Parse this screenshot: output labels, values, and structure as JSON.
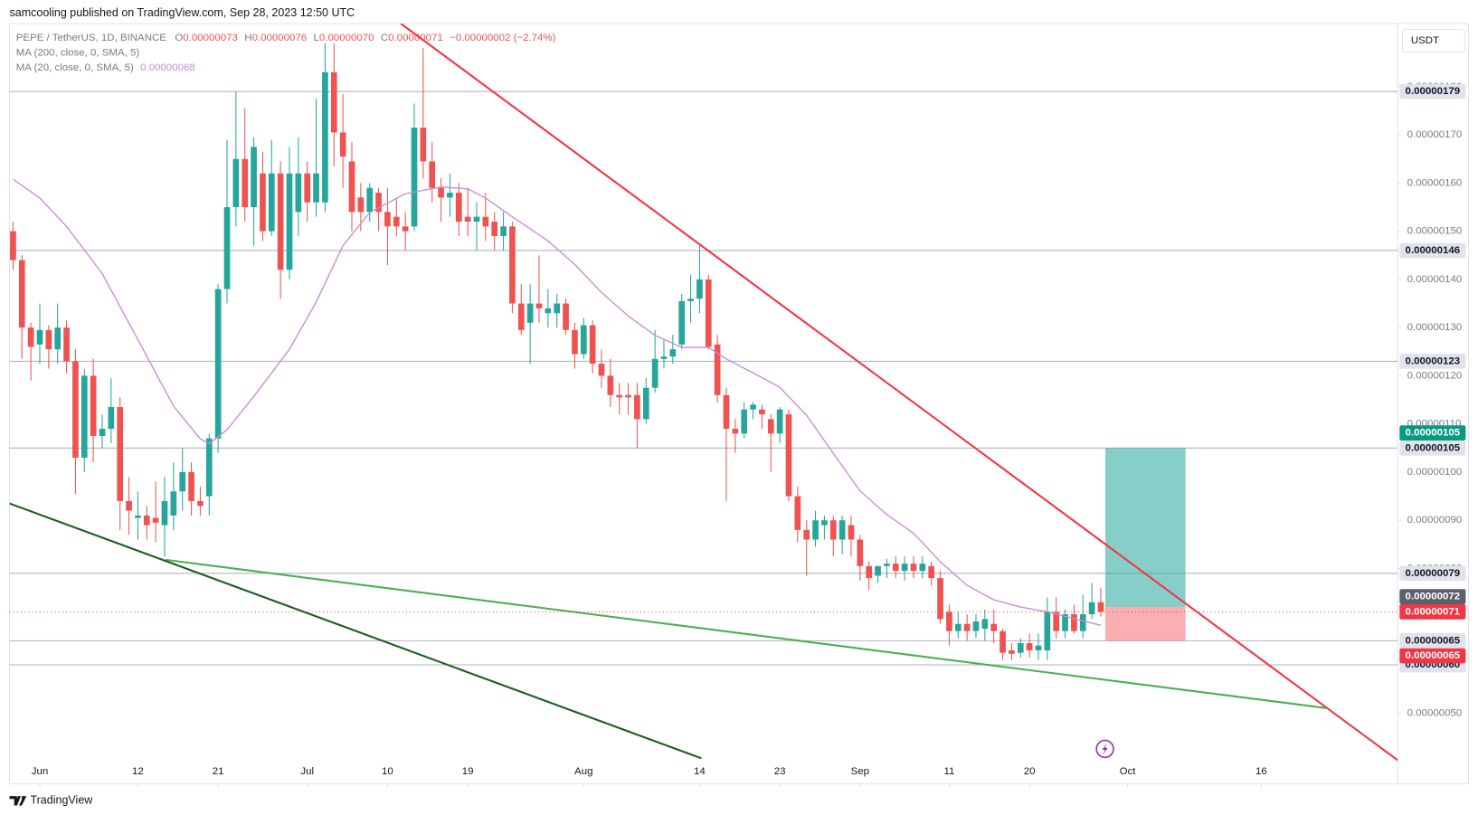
{
  "chart_data": {
    "type": "candlestick",
    "header": {
      "published": "samcooling published on TradingView.com, Sep 28, 2023 12:50 UTC",
      "symbol": "PEPE / TetherUS, 1D, BINANCE",
      "ohlc": [
        {
          "key": "O",
          "value": "0.00000073"
        },
        {
          "key": "H",
          "value": "0.00000076"
        },
        {
          "key": "L",
          "value": "0.00000070"
        },
        {
          "key": "C",
          "value": "0.00000071"
        }
      ],
      "change": "−0.00000002 (−2.74%)",
      "currency": "USDT",
      "brand": "TradingView"
    },
    "up_color": "#26a69a",
    "down_color": "#ef5350",
    "xlim": [
      -0.4,
      155.3
    ],
    "xticks": [
      {
        "value": 3,
        "label": "Jun"
      },
      {
        "value": 14,
        "label": "12"
      },
      {
        "value": 23,
        "label": "21"
      },
      {
        "value": 33,
        "label": "Jul"
      },
      {
        "value": 42,
        "label": "10"
      },
      {
        "value": 51,
        "label": "19"
      },
      {
        "value": 64,
        "label": "Aug"
      },
      {
        "value": 77,
        "label": "14"
      },
      {
        "value": 86,
        "label": "23"
      },
      {
        "value": 95,
        "label": "Sep"
      },
      {
        "value": 105,
        "label": "11"
      },
      {
        "value": 114,
        "label": "20"
      },
      {
        "value": 125,
        "label": "Oct"
      },
      {
        "value": 140,
        "label": "16"
      }
    ],
    "ylim": [
      3.53e-07,
      1.931e-06
    ],
    "yticks": [
      {
        "value": 5e-07,
        "label": "0.00000050"
      },
      {
        "value": 6e-07,
        "label": "0.00000060"
      },
      {
        "value": 7e-07,
        "label": "0.00000070"
      },
      {
        "value": 8e-07,
        "label": "0.00000080"
      },
      {
        "value": 9e-07,
        "label": "0.00000090"
      },
      {
        "value": 1e-06,
        "label": "0.00000100"
      },
      {
        "value": 1.1e-06,
        "label": "0.00000110"
      },
      {
        "value": 1.2e-06,
        "label": "0.00000120"
      },
      {
        "value": 1.3e-06,
        "label": "0.00000130"
      },
      {
        "value": 1.4e-06,
        "label": "0.00000140"
      },
      {
        "value": 1.5e-06,
        "label": "0.00000150"
      },
      {
        "value": 1.6e-06,
        "label": "0.00000160"
      },
      {
        "value": 1.7e-06,
        "label": "0.00000170"
      },
      {
        "value": 1.8e-06,
        "label": "0.00000180"
      }
    ],
    "grid": false,
    "ohlc": [
      [
        1.5e-06,
        1.52e-06,
        1.42e-06,
        1.44e-06
      ],
      [
        1.44e-06,
        1.45e-06,
        1.235e-06,
        1.3e-06
      ],
      [
        1.3e-06,
        1.31e-06,
        1.19e-06,
        1.26e-06
      ],
      [
        1.265e-06,
        1.35e-06,
        1.225e-06,
        1.295e-06
      ],
      [
        1.295e-06,
        1.305e-06,
        1.215e-06,
        1.255e-06
      ],
      [
        1.255e-06,
        1.35e-06,
        1.225e-06,
        1.3e-06
      ],
      [
        1.3e-06,
        1.315e-06,
        1.205e-06,
        1.23e-06
      ],
      [
        1.23e-06,
        1.255e-06,
        9.55e-07,
        1.03e-06
      ],
      [
        1.03e-06,
        1.215e-06,
        1e-06,
        1.2e-06
      ],
      [
        1.2e-06,
        1.235e-06,
        1.02e-06,
        1.075e-06
      ],
      [
        1.075e-06,
        1.12e-06,
        1.05e-06,
        1.09e-06
      ],
      [
        1.09e-06,
        1.195e-06,
        1.06e-06,
        1.135e-06
      ],
      [
        1.135e-06,
        1.155e-06,
        8.8e-07,
        9.4e-07
      ],
      [
        9.4e-07,
        9.9e-07,
        8.7e-07,
        9.2e-07
      ],
      [
        9.05e-07,
        9.6e-07,
        8.6e-07,
        9.1e-07
      ],
      [
        9.1e-07,
        9.3e-07,
        8.6e-07,
        8.9e-07
      ],
      [
        9.05e-07,
        9.8e-07,
        8.55e-07,
        8.95e-07
      ],
      [
        8.9e-07,
        9.9e-07,
        8.25e-07,
        9.4e-07
      ],
      [
        9.1e-07,
        1.02e-06,
        8.8e-07,
        9.6e-07
      ],
      [
        9.6e-07,
        1.05e-06,
        9.2e-07,
        1e-06
      ],
      [
        1e-06,
        1.02e-06,
        9.1e-07,
        9.4e-07
      ],
      [
        9.4e-07,
        9.7e-07,
        9.1e-07,
        9.3e-07
      ],
      [
        9.5e-07,
        1.08e-06,
        9.1e-07,
        1.07e-06
      ],
      [
        1.07e-06,
        1.39e-06,
        1.04e-06,
        1.38e-06
      ],
      [
        1.38e-06,
        1.69e-06,
        1.35e-06,
        1.55e-06
      ],
      [
        1.55e-06,
        1.79e-06,
        1.51e-06,
        1.65e-06
      ],
      [
        1.65e-06,
        1.755e-06,
        1.52e-06,
        1.55e-06
      ],
      [
        1.55e-06,
        1.695e-06,
        1.47e-06,
        1.675e-06
      ],
      [
        1.62e-06,
        1.665e-06,
        1.48e-06,
        1.5e-06
      ],
      [
        1.5e-06,
        1.69e-06,
        1.49e-06,
        1.62e-06
      ],
      [
        1.62e-06,
        1.645e-06,
        1.36e-06,
        1.42e-06
      ],
      [
        1.42e-06,
        1.675e-06,
        1.4e-06,
        1.62e-06
      ],
      [
        1.54e-06,
        1.695e-06,
        1.49e-06,
        1.62e-06
      ],
      [
        1.62e-06,
        1.645e-06,
        1.52e-06,
        1.56e-06
      ],
      [
        1.56e-06,
        1.775e-06,
        1.53e-06,
        1.62e-06
      ],
      [
        1.56e-06,
        1.89e-06,
        1.54e-06,
        1.83e-06
      ],
      [
        1.83e-06,
        1.89e-06,
        1.635e-06,
        1.705e-06
      ],
      [
        1.705e-06,
        1.785e-06,
        1.59e-06,
        1.655e-06
      ],
      [
        1.645e-06,
        1.685e-06,
        1.5e-06,
        1.54e-06
      ],
      [
        1.57e-06,
        1.6e-06,
        1.5e-06,
        1.54e-06
      ],
      [
        1.54e-06,
        1.6e-06,
        1.52e-06,
        1.59e-06
      ],
      [
        1.58e-06,
        1.59e-06,
        1.5e-06,
        1.54e-06
      ],
      [
        1.54e-06,
        1.59e-06,
        1.43e-06,
        1.51e-06
      ],
      [
        1.53e-06,
        1.57e-06,
        1.49e-06,
        1.51e-06
      ],
      [
        1.51e-06,
        1.54e-06,
        1.46e-06,
        1.5e-06
      ],
      [
        1.51e-06,
        1.765e-06,
        1.5e-06,
        1.715e-06
      ],
      [
        1.715e-06,
        1.88e-06,
        1.61e-06,
        1.645e-06
      ],
      [
        1.645e-06,
        1.685e-06,
        1.56e-06,
        1.59e-06
      ],
      [
        1.59e-06,
        1.61e-06,
        1.52e-06,
        1.57e-06
      ],
      [
        1.57e-06,
        1.62e-06,
        1.53e-06,
        1.58e-06
      ],
      [
        1.58e-06,
        1.6e-06,
        1.49e-06,
        1.52e-06
      ],
      [
        1.53e-06,
        1.59e-06,
        1.49e-06,
        1.52e-06
      ],
      [
        1.52e-06,
        1.56e-06,
        1.46e-06,
        1.53e-06
      ],
      [
        1.53e-06,
        1.58e-06,
        1.48e-06,
        1.51e-06
      ],
      [
        1.52e-06,
        1.54e-06,
        1.46e-06,
        1.49e-06
      ],
      [
        1.49e-06,
        1.54e-06,
        1.46e-06,
        1.51e-06
      ],
      [
        1.51e-06,
        1.52e-06,
        1.33e-06,
        1.35e-06
      ],
      [
        1.35e-06,
        1.39e-06,
        1.285e-06,
        1.295e-06
      ],
      [
        1.31e-06,
        1.39e-06,
        1.225e-06,
        1.35e-06
      ],
      [
        1.35e-06,
        1.45e-06,
        1.31e-06,
        1.34e-06
      ],
      [
        1.33e-06,
        1.38e-06,
        1.3e-06,
        1.34e-06
      ],
      [
        1.33e-06,
        1.37e-06,
        1.3e-06,
        1.35e-06
      ],
      [
        1.35e-06,
        1.36e-06,
        1.285e-06,
        1.295e-06
      ],
      [
        1.295e-06,
        1.31e-06,
        1.215e-06,
        1.245e-06
      ],
      [
        1.245e-06,
        1.32e-06,
        1.235e-06,
        1.305e-06
      ],
      [
        1.305e-06,
        1.315e-06,
        1.205e-06,
        1.225e-06
      ],
      [
        1.225e-06,
        1.255e-06,
        1.175e-06,
        1.2e-06
      ],
      [
        1.2e-06,
        1.235e-06,
        1.135e-06,
        1.16e-06
      ],
      [
        1.16e-06,
        1.185e-06,
        1.12e-06,
        1.155e-06
      ],
      [
        1.16e-06,
        1.185e-06,
        1.12e-06,
        1.155e-06
      ],
      [
        1.16e-06,
        1.185e-06,
        1.05e-06,
        1.11e-06
      ],
      [
        1.11e-06,
        1.195e-06,
        1.1e-06,
        1.175e-06
      ],
      [
        1.175e-06,
        1.295e-06,
        1.165e-06,
        1.235e-06
      ],
      [
        1.235e-06,
        1.275e-06,
        1.215e-06,
        1.24e-06
      ],
      [
        1.24e-06,
        1.285e-06,
        1.225e-06,
        1.255e-06
      ],
      [
        1.265e-06,
        1.37e-06,
        1.255e-06,
        1.355e-06
      ],
      [
        1.355e-06,
        1.41e-06,
        1.31e-06,
        1.36e-06
      ],
      [
        1.36e-06,
        1.47e-06,
        1.33e-06,
        1.4e-06
      ],
      [
        1.4e-06,
        1.41e-06,
        1.255e-06,
        1.26e-06
      ],
      [
        1.265e-06,
        1.285e-06,
        1.145e-06,
        1.16e-06
      ],
      [
        1.16e-06,
        1.175e-06,
        9.4e-07,
        1.09e-06
      ],
      [
        1.09e-06,
        1.11e-06,
        1.04e-06,
        1.08e-06
      ],
      [
        1.08e-06,
        1.145e-06,
        1.07e-06,
        1.13e-06
      ],
      [
        1.13e-06,
        1.145e-06,
        1.11e-06,
        1.14e-06
      ],
      [
        1.13e-06,
        1.14e-06,
        1.09e-06,
        1.12e-06
      ],
      [
        1.11e-06,
        1.12e-06,
        1e-06,
        1.08e-06
      ],
      [
        1.08e-06,
        1.135e-06,
        1.06e-06,
        1.13e-06
      ],
      [
        1.12e-06,
        1.13e-06,
        9.4e-07,
        9.5e-07
      ],
      [
        9.5e-07,
        9.7e-07,
        8.55e-07,
        8.8e-07
      ],
      [
        8.8e-07,
        9e-07,
        7.85e-07,
        8.6e-07
      ],
      [
        8.6e-07,
        9.2e-07,
        8.45e-07,
        9e-07
      ],
      [
        8.9e-07,
        9.1e-07,
        8.6e-07,
        9e-07
      ],
      [
        9e-07,
        9.1e-07,
        8.25e-07,
        8.6e-07
      ],
      [
        8.6e-07,
        9.1e-07,
        8.3e-07,
        9e-07
      ],
      [
        8.9e-07,
        9.1e-07,
        8.25e-07,
        8.6e-07
      ],
      [
        8.6e-07,
        8.7e-07,
        7.75e-07,
        8.05e-07
      ],
      [
        8.05e-07,
        8.15e-07,
        7.55e-07,
        7.8e-07
      ],
      [
        7.85e-07,
        8.05e-07,
        7.7e-07,
        8.05e-07
      ],
      [
        8.05e-07,
        8.2e-07,
        7.8e-07,
        8.1e-07
      ],
      [
        8.1e-07,
        8.25e-07,
        7.8e-07,
        7.95e-07
      ],
      [
        7.95e-07,
        8.25e-07,
        7.75e-07,
        8.1e-07
      ],
      [
        8.1e-07,
        8.25e-07,
        7.8e-07,
        7.95e-07
      ],
      [
        7.95e-07,
        8.25e-07,
        7.8e-07,
        8.1e-07
      ],
      [
        8.05e-07,
        8.15e-07,
        7.65e-07,
        7.8e-07
      ],
      [
        7.8e-07,
        7.95e-07,
        6.85e-07,
        6.95e-07
      ],
      [
        7.1e-07,
        7.25e-07,
        6.4e-07,
        6.7e-07
      ],
      [
        6.7e-07,
        7.1e-07,
        6.55e-07,
        6.85e-07
      ],
      [
        6.85e-07,
        7.05e-07,
        6.5e-07,
        6.7e-07
      ],
      [
        6.7e-07,
        7.05e-07,
        6.55e-07,
        6.9e-07
      ],
      [
        6.75e-07,
        7.15e-07,
        6.5e-07,
        6.95e-07
      ],
      [
        6.85e-07,
        7.15e-07,
        6.45e-07,
        6.7e-07
      ],
      [
        6.7e-07,
        6.75e-07,
        6.1e-07,
        6.25e-07
      ],
      [
        6.3e-07,
        6.45e-07,
        6.1e-07,
        6.23e-07
      ],
      [
        6.25e-07,
        6.55e-07,
        6.15e-07,
        6.45e-07
      ],
      [
        6.45e-07,
        6.65e-07,
        6.15e-07,
        6.3e-07
      ],
      [
        6.3e-07,
        6.65e-07,
        6.1e-07,
        6.4e-07
      ],
      [
        6.3e-07,
        7.4e-07,
        6.1e-07,
        7.1e-07
      ],
      [
        7.1e-07,
        7.4e-07,
        6.55e-07,
        6.7e-07
      ],
      [
        6.7e-07,
        7.15e-07,
        6.55e-07,
        7.05e-07
      ],
      [
        7.05e-07,
        7.25e-07,
        6.65e-07,
        6.7e-07
      ],
      [
        6.7e-07,
        7.45e-07,
        6.55e-07,
        7.05e-07
      ],
      [
        7.05e-07,
        7.7e-07,
        6.95e-07,
        7.3e-07
      ],
      [
        7.3e-07,
        7.6e-07,
        7e-07,
        7.1e-07
      ]
    ],
    "indicators": [
      {
        "name": "MA (200, close, 0, SMA, 5)"
      },
      {
        "name": "MA (20, close, 0, SMA, 5)",
        "value_label": "0.00000068",
        "color": "#c98bd6",
        "x": [
          0,
          3,
          6,
          10,
          14,
          18,
          21,
          22,
          24,
          27,
          31,
          34,
          37,
          40,
          44,
          48,
          51,
          53,
          56,
          60,
          63,
          66,
          69,
          72,
          75,
          78,
          80,
          83,
          86,
          89,
          92,
          95,
          98,
          101,
          104,
          107,
          110,
          113,
          116,
          119,
          122
        ],
        "values": [
          1.608e-06,
          1.569e-06,
          1.51e-06,
          1.412e-06,
          1.275e-06,
          1.137e-06,
          1.069e-06,
          1.059e-06,
          1.088e-06,
          1.157e-06,
          1.255e-06,
          1.353e-06,
          1.47e-06,
          1.539e-06,
          1.578e-06,
          1.592e-06,
          1.588e-06,
          1.569e-06,
          1.53e-06,
          1.48e-06,
          1.431e-06,
          1.373e-06,
          1.324e-06,
          1.284e-06,
          1.259e-06,
          1.259e-06,
          1.235e-06,
          1.206e-06,
          1.176e-06,
          1.118e-06,
          1.039e-06,
          9.61e-07,
          9.12e-07,
          8.73e-07,
          8.14e-07,
          7.65e-07,
          7.35e-07,
          7.2e-07,
          7.1e-07,
          6.96e-07,
          6.82e-07
        ]
      }
    ],
    "trendlines": [
      {
        "color": "#f23645",
        "x": [
          43.5,
          155.3
        ],
        "values": [
          1.931e-06,
          4.02e-07
        ]
      },
      {
        "color": "#4caf50",
        "x": [
          17.1,
          147.4
        ],
        "values": [
          8.18e-07,
          5.1e-07
        ]
      },
      {
        "color": "#1b5e20",
        "x": [
          -0.4,
          77.2
        ],
        "values": [
          9.35e-07,
          4.06e-07
        ]
      }
    ],
    "levels": [
      {
        "value": 1.79e-06,
        "label": "0.00000179"
      },
      {
        "value": 1.46e-06,
        "label": "0.00000146"
      },
      {
        "value": 1.23e-06,
        "label": "0.00000123"
      },
      {
        "value": 1.05e-06,
        "label": "0.00000105"
      },
      {
        "value": 7.9e-07,
        "label": "0.00000079"
      },
      {
        "value": 6.5e-07,
        "label": "0.00000065"
      },
      {
        "value": 6e-07,
        "label": "0.00000060"
      }
    ],
    "position": {
      "x": [
        122.5,
        131.5
      ],
      "target": {
        "value": 1.05e-06,
        "label": "0.00000105"
      },
      "entry": {
        "value": 7.2e-07,
        "label": "0.00000072"
      },
      "stop": {
        "value": 6.5e-07,
        "label": "0.00000065"
      }
    },
    "current_price": {
      "value": 7.1e-07,
      "label": "0.00000071"
    }
  }
}
